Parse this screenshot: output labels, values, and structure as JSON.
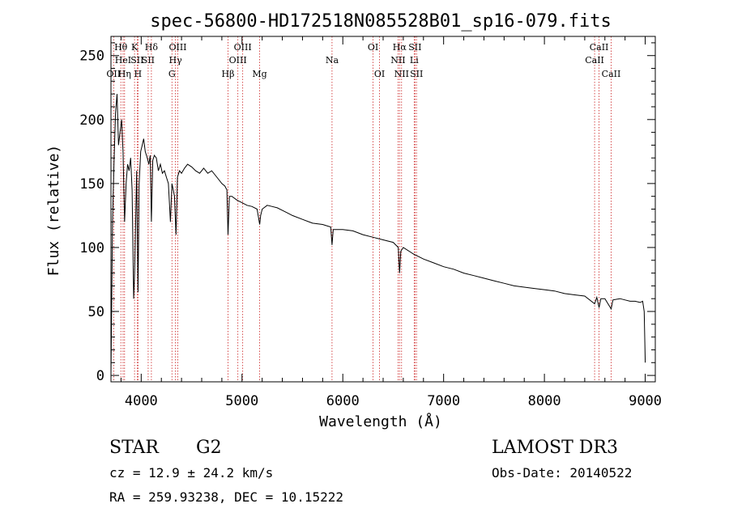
{
  "chart_data": {
    "type": "line",
    "title": "spec-56800-HD172518N085528B01_sp16-079.fits",
    "xlabel": "Wavelength (Å)",
    "ylabel": "Flux (relative)",
    "xlim": [
      3700,
      9100
    ],
    "ylim": [
      -5,
      265
    ],
    "x_ticks": [
      4000,
      5000,
      6000,
      7000,
      8000,
      9000
    ],
    "y_ticks": [
      0,
      50,
      100,
      150,
      200,
      250
    ],
    "x_tick_labels": [
      "4000",
      "5000",
      "6000",
      "7000",
      "8000",
      "9000"
    ],
    "y_tick_labels": [
      "0",
      "50",
      "100",
      "150",
      "200",
      "250"
    ],
    "grid": false,
    "series": [
      {
        "name": "flux",
        "x": [
          3700,
          3715,
          3730,
          3745,
          3760,
          3775,
          3790,
          3805,
          3820,
          3835,
          3850,
          3865,
          3880,
          3895,
          3910,
          3925,
          3935,
          3945,
          3955,
          3968,
          3980,
          3995,
          4010,
          4025,
          4040,
          4060,
          4075,
          4090,
          4101,
          4115,
          4130,
          4150,
          4170,
          4190,
          4210,
          4230,
          4250,
          4270,
          4290,
          4305,
          4318,
          4330,
          4345,
          4360,
          4380,
          4400,
          4430,
          4460,
          4500,
          4540,
          4580,
          4620,
          4660,
          4700,
          4750,
          4800,
          4830,
          4850,
          4861,
          4875,
          4900,
          4950,
          5000,
          5050,
          5100,
          5150,
          5175,
          5185,
          5200,
          5250,
          5300,
          5350,
          5400,
          5450,
          5500,
          5600,
          5700,
          5800,
          5880,
          5893,
          5905,
          6000,
          6100,
          6200,
          6300,
          6400,
          6500,
          6550,
          6563,
          6575,
          6600,
          6700,
          6800,
          6900,
          7000,
          7100,
          7200,
          7300,
          7400,
          7500,
          7600,
          7700,
          7800,
          7900,
          8000,
          8100,
          8200,
          8300,
          8400,
          8498,
          8520,
          8542,
          8560,
          8600,
          8662,
          8680,
          8750,
          8800,
          8850,
          8900,
          8950,
          8975,
          8990,
          9000
        ],
        "y": [
          0,
          120,
          165,
          205,
          220,
          180,
          190,
          200,
          175,
          120,
          150,
          165,
          160,
          170,
          145,
          60,
          80,
          120,
          160,
          65,
          150,
          175,
          180,
          185,
          175,
          170,
          165,
          172,
          120,
          168,
          172,
          170,
          160,
          165,
          158,
          160,
          155,
          150,
          120,
          150,
          145,
          140,
          110,
          155,
          160,
          158,
          162,
          165,
          163,
          160,
          158,
          162,
          158,
          160,
          155,
          150,
          148,
          145,
          110,
          140,
          140,
          137,
          135,
          133,
          132,
          130,
          118,
          125,
          130,
          133,
          132,
          131,
          129,
          127,
          125,
          122,
          119,
          118,
          116,
          102,
          114,
          114,
          113,
          110,
          108,
          106,
          104,
          100,
          80,
          97,
          100,
          95,
          91,
          88,
          85,
          83,
          80,
          78,
          76,
          74,
          72,
          70,
          69,
          68,
          67,
          66,
          64,
          63,
          62,
          56,
          61,
          53,
          60,
          60,
          52,
          59,
          60,
          59,
          58,
          58,
          57,
          58,
          50,
          10
        ]
      }
    ],
    "lines": [
      {
        "label": "OΙΙ",
        "wl": 3727,
        "row": 3,
        "side": "right"
      },
      {
        "label": "Hθ",
        "wl": 3798,
        "row": 1,
        "side": "center"
      },
      {
        "label": "HeI",
        "wl": 3820,
        "row": 2,
        "side": "center"
      },
      {
        "label": "Hη",
        "wl": 3835,
        "row": 3,
        "side": "center"
      },
      {
        "label": "K",
        "wl": 3934,
        "row": 1,
        "side": "center"
      },
      {
        "label": "SII",
        "wl": 3960,
        "row": 2,
        "side": "center"
      },
      {
        "label": "H",
        "wl": 3968,
        "row": 3,
        "side": "center"
      },
      {
        "label": "Hδ",
        "wl": 4101,
        "row": 1,
        "side": "center"
      },
      {
        "label": "SII",
        "wl": 4069,
        "row": 2,
        "side": "center"
      },
      {
        "label": "OIII",
        "wl": 4363,
        "row": 1,
        "side": "center"
      },
      {
        "label": "Hγ",
        "wl": 4340,
        "row": 2,
        "side": "center"
      },
      {
        "label": "G",
        "wl": 4305,
        "row": 3,
        "side": "center"
      },
      {
        "label": "OIII",
        "wl": 5007,
        "row": 1,
        "side": "center"
      },
      {
        "label": "OIII",
        "wl": 4959,
        "row": 2,
        "side": "center"
      },
      {
        "label": "Hβ",
        "wl": 4861,
        "row": 3,
        "side": "center"
      },
      {
        "label": "Mg",
        "wl": 5175,
        "row": 3,
        "side": "center"
      },
      {
        "label": "Na",
        "wl": 5893,
        "row": 2,
        "side": "center"
      },
      {
        "label": "OI",
        "wl": 6300,
        "row": 1,
        "side": "center"
      },
      {
        "label": "OI",
        "wl": 6364,
        "row": 3,
        "side": "center"
      },
      {
        "label": "Hα",
        "wl": 6563,
        "row": 1,
        "side": "center"
      },
      {
        "label": "NII",
        "wl": 6548,
        "row": 2,
        "side": "center"
      },
      {
        "label": "NII",
        "wl": 6583,
        "row": 3,
        "side": "center"
      },
      {
        "label": "SII",
        "wl": 6716,
        "row": 1,
        "side": "center"
      },
      {
        "label": "Li",
        "wl": 6708,
        "row": 2,
        "side": "center"
      },
      {
        "label": "SII",
        "wl": 6731,
        "row": 3,
        "side": "center"
      },
      {
        "label": "CaII",
        "wl": 8542,
        "row": 1,
        "side": "center"
      },
      {
        "label": "CaII",
        "wl": 8498,
        "row": 2,
        "side": "center"
      },
      {
        "label": "CaII",
        "wl": 8662,
        "row": 3,
        "side": "center"
      }
    ]
  },
  "info": {
    "object_class": "STAR",
    "subclass": "G2",
    "redshift": "cz = 12.9 ± 24.2 km/s",
    "coords": "RA = 259.93238, DEC =  10.15222",
    "survey": "LAMOST DR3",
    "obs_date": "Obs-Date: 20140522"
  },
  "colors": {
    "axis": "#000000",
    "spectrum": "#000000",
    "line_marker": "#cc2222",
    "background": "#ffffff"
  }
}
